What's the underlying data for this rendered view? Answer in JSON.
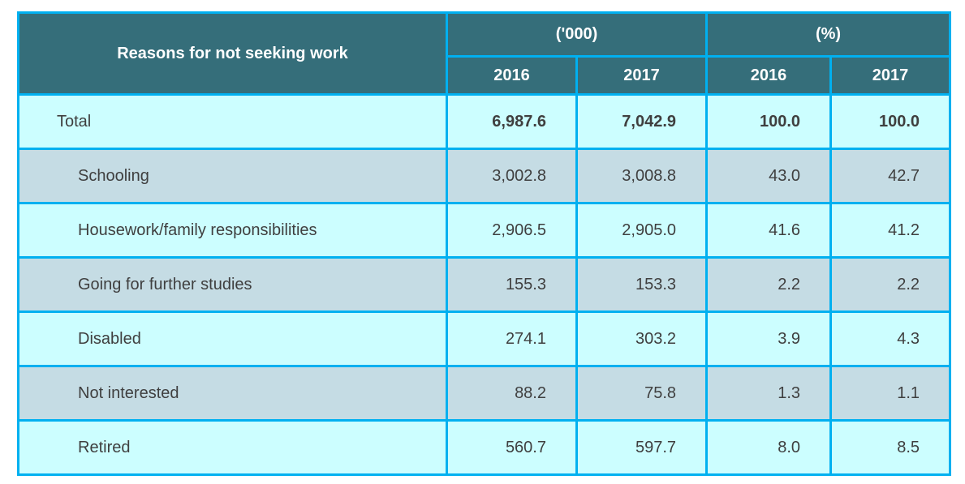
{
  "table": {
    "header": {
      "label_column": "Reasons for not seeking work",
      "groups": [
        {
          "label": "('000)",
          "years": [
            "2016",
            "2017"
          ]
        },
        {
          "label": "(%)",
          "years": [
            "2016",
            "2017"
          ]
        }
      ]
    },
    "rows": [
      {
        "label": "Total",
        "total": true,
        "values": [
          "6,987.6",
          "7,042.9",
          "100.0",
          "100.0"
        ]
      },
      {
        "label": "Schooling",
        "total": false,
        "values": [
          "3,002.8",
          "3,008.8",
          "43.0",
          "42.7"
        ]
      },
      {
        "label": "Housework/family responsibilities",
        "total": false,
        "values": [
          "2,906.5",
          "2,905.0",
          "41.6",
          "41.2"
        ]
      },
      {
        "label": "Going for further studies",
        "total": false,
        "values": [
          "155.3",
          "153.3",
          "2.2",
          "2.2"
        ]
      },
      {
        "label": "Disabled",
        "total": false,
        "values": [
          "274.1",
          "303.2",
          "3.9",
          "4.3"
        ]
      },
      {
        "label": "Not interested",
        "total": false,
        "values": [
          "88.2",
          "75.8",
          "1.3",
          "1.1"
        ]
      },
      {
        "label": "Retired",
        "total": false,
        "values": [
          "560.7",
          "597.7",
          "8.0",
          "8.5"
        ]
      }
    ]
  },
  "colors": {
    "header_bg": "#356E7A",
    "border": "#00B0F0",
    "row_light": "#CCFEFF",
    "row_alt": "#C5DCE4",
    "text_dark": "#3F3F3F",
    "header_text": "#FFFFFF"
  },
  "chart_data": {
    "type": "table",
    "title": "Reasons for not seeking work",
    "column_groups": [
      "('000)",
      "(%)"
    ],
    "columns": [
      "Reasons for not seeking work",
      "('000) 2016",
      "('000) 2017",
      "(%) 2016",
      "(%) 2017"
    ],
    "rows": [
      [
        "Total",
        6987.6,
        7042.9,
        100.0,
        100.0
      ],
      [
        "Schooling",
        3002.8,
        3008.8,
        43.0,
        42.7
      ],
      [
        "Housework/family responsibilities",
        2906.5,
        2905.0,
        41.6,
        41.2
      ],
      [
        "Going for further studies",
        155.3,
        153.3,
        2.2,
        2.2
      ],
      [
        "Disabled",
        274.1,
        303.2,
        3.9,
        4.3
      ],
      [
        "Not interested",
        88.2,
        75.8,
        1.3,
        1.1
      ],
      [
        "Retired",
        560.7,
        597.7,
        8.0,
        8.5
      ]
    ]
  }
}
